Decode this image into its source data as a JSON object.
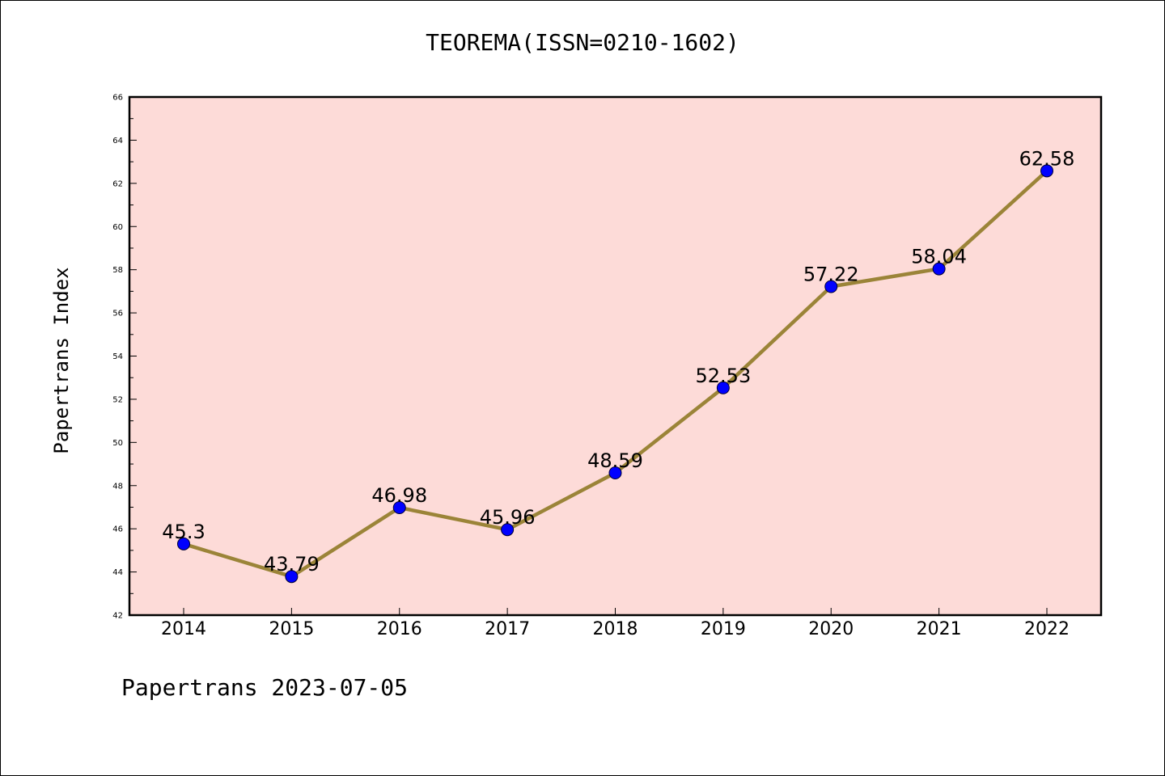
{
  "chart_data": {
    "type": "line",
    "title": "TEOREMA(ISSN=0210-1602)",
    "xlabel": "",
    "ylabel": "Papertrans Index",
    "footer": "Papertrans 2023-07-05",
    "categories": [
      "2014",
      "2015",
      "2016",
      "2017",
      "2018",
      "2019",
      "2020",
      "2021",
      "2022"
    ],
    "series": [
      {
        "values": [
          45.3,
          43.79,
          46.98,
          45.96,
          48.59,
          52.53,
          57.22,
          58.04,
          62.58
        ],
        "labels": [
          "45.3",
          "43.79",
          "46.98",
          "45.96",
          "48.59",
          "52.53",
          "57.22",
          "58.04",
          "62.58"
        ],
        "line_color": "#9b8438",
        "marker_color": "#0000ff"
      }
    ],
    "ylim": [
      42,
      66
    ],
    "yticks": [
      42,
      44,
      46,
      48,
      50,
      52,
      54,
      56,
      58,
      60,
      62,
      64,
      66
    ],
    "grid": false,
    "legend": "none",
    "plot_background": "#fddbd8"
  }
}
